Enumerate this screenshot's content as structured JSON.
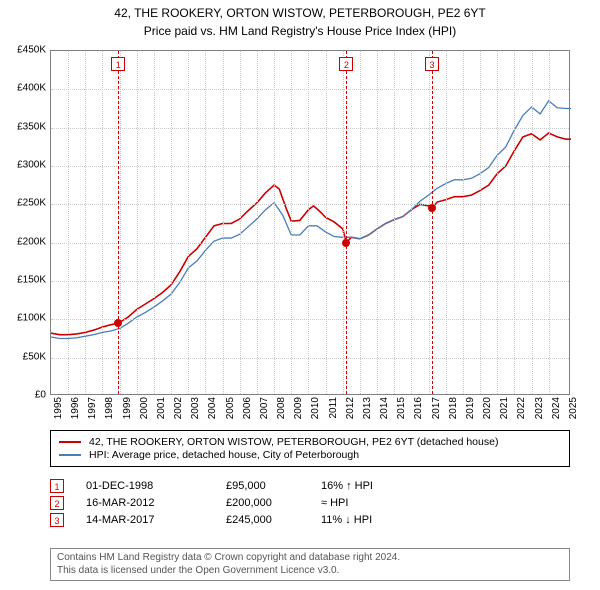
{
  "title": "42, THE ROOKERY, ORTON WISTOW, PETERBOROUGH, PE2 6YT",
  "subtitle": "Price paid vs. HM Land Registry's House Price Index (HPI)",
  "chart": {
    "type": "line",
    "background_color": "#ffffff",
    "grid_color": "#c8c8c8",
    "border_color": "#808080",
    "x_years": [
      1995,
      1996,
      1997,
      1998,
      1999,
      2000,
      2001,
      2002,
      2003,
      2004,
      2005,
      2006,
      2007,
      2008,
      2009,
      2010,
      2011,
      2012,
      2013,
      2014,
      2015,
      2016,
      2017,
      2018,
      2019,
      2020,
      2021,
      2022,
      2023,
      2024,
      2025
    ],
    "xlim": [
      1995,
      2025.3
    ],
    "ylim": [
      0,
      450000
    ],
    "ytick_step": 50000,
    "yticks": [
      "£0",
      "£50K",
      "£100K",
      "£150K",
      "£200K",
      "£250K",
      "£300K",
      "£350K",
      "£400K",
      "£450K"
    ],
    "series": [
      {
        "name": "property",
        "label": "42, THE ROOKERY, ORTON WISTOW, PETERBOROUGH, PE2 6YT (detached house)",
        "color": "#cc0000",
        "line_width": 1.6,
        "data": [
          [
            1995.0,
            82000
          ],
          [
            1995.5,
            80000
          ],
          [
            1996.0,
            80000
          ],
          [
            1996.5,
            81000
          ],
          [
            1997.0,
            83000
          ],
          [
            1997.5,
            86000
          ],
          [
            1998.0,
            90000
          ],
          [
            1998.5,
            93000
          ],
          [
            1998.92,
            95000
          ],
          [
            1999.5,
            103000
          ],
          [
            2000.0,
            113000
          ],
          [
            2000.5,
            120000
          ],
          [
            2001.0,
            127000
          ],
          [
            2001.5,
            135000
          ],
          [
            2002.0,
            145000
          ],
          [
            2002.5,
            162000
          ],
          [
            2003.0,
            182000
          ],
          [
            2003.5,
            192000
          ],
          [
            2004.0,
            207000
          ],
          [
            2004.5,
            222000
          ],
          [
            2005.0,
            225000
          ],
          [
            2005.5,
            225000
          ],
          [
            2006.0,
            231000
          ],
          [
            2006.5,
            242000
          ],
          [
            2007.0,
            252000
          ],
          [
            2007.5,
            265000
          ],
          [
            2008.0,
            275000
          ],
          [
            2008.3,
            270000
          ],
          [
            2008.7,
            245000
          ],
          [
            2009.0,
            228000
          ],
          [
            2009.5,
            229000
          ],
          [
            2010.0,
            243000
          ],
          [
            2010.3,
            248000
          ],
          [
            2010.7,
            240000
          ],
          [
            2011.0,
            233000
          ],
          [
            2011.5,
            227000
          ],
          [
            2012.0,
            218000
          ],
          [
            2012.21,
            200000
          ],
          [
            2012.5,
            207000
          ],
          [
            2013.0,
            205000
          ],
          [
            2013.5,
            210000
          ],
          [
            2014.0,
            218000
          ],
          [
            2014.5,
            225000
          ],
          [
            2015.0,
            230000
          ],
          [
            2015.5,
            234000
          ],
          [
            2016.0,
            243000
          ],
          [
            2016.5,
            250000
          ],
          [
            2017.0,
            248000
          ],
          [
            2017.2,
            245000
          ],
          [
            2017.5,
            253000
          ],
          [
            2018.0,
            256000
          ],
          [
            2018.5,
            260000
          ],
          [
            2019.0,
            260000
          ],
          [
            2019.5,
            262000
          ],
          [
            2020.0,
            268000
          ],
          [
            2020.5,
            275000
          ],
          [
            2021.0,
            290000
          ],
          [
            2021.5,
            300000
          ],
          [
            2022.0,
            320000
          ],
          [
            2022.5,
            338000
          ],
          [
            2023.0,
            342000
          ],
          [
            2023.5,
            334000
          ],
          [
            2024.0,
            343000
          ],
          [
            2024.5,
            338000
          ],
          [
            2025.0,
            335000
          ],
          [
            2025.3,
            335000
          ]
        ]
      },
      {
        "name": "hpi",
        "label": "HPI: Average price, detached house, City of Peterborough",
        "color": "#4a7ebb",
        "line_width": 1.3,
        "data": [
          [
            1995.0,
            77000
          ],
          [
            1995.5,
            75000
          ],
          [
            1996.0,
            75000
          ],
          [
            1996.5,
            76000
          ],
          [
            1997.0,
            78000
          ],
          [
            1997.5,
            80000
          ],
          [
            1998.0,
            83000
          ],
          [
            1998.5,
            85000
          ],
          [
            1999.0,
            88000
          ],
          [
            1999.5,
            95000
          ],
          [
            2000.0,
            103000
          ],
          [
            2000.5,
            109000
          ],
          [
            2001.0,
            116000
          ],
          [
            2001.5,
            124000
          ],
          [
            2002.0,
            133000
          ],
          [
            2002.5,
            148000
          ],
          [
            2003.0,
            167000
          ],
          [
            2003.5,
            176000
          ],
          [
            2004.0,
            190000
          ],
          [
            2004.5,
            202000
          ],
          [
            2005.0,
            206000
          ],
          [
            2005.5,
            206000
          ],
          [
            2006.0,
            211000
          ],
          [
            2006.5,
            221000
          ],
          [
            2007.0,
            231000
          ],
          [
            2007.5,
            243000
          ],
          [
            2008.0,
            252000
          ],
          [
            2008.5,
            236000
          ],
          [
            2009.0,
            210000
          ],
          [
            2009.5,
            210000
          ],
          [
            2010.0,
            222000
          ],
          [
            2010.5,
            222000
          ],
          [
            2011.0,
            214000
          ],
          [
            2011.5,
            208000
          ],
          [
            2012.0,
            207000
          ],
          [
            2012.5,
            207000
          ],
          [
            2013.0,
            205000
          ],
          [
            2013.5,
            210000
          ],
          [
            2014.0,
            218000
          ],
          [
            2014.5,
            225000
          ],
          [
            2015.0,
            230000
          ],
          [
            2015.5,
            234000
          ],
          [
            2016.0,
            243000
          ],
          [
            2016.5,
            254000
          ],
          [
            2017.0,
            262000
          ],
          [
            2017.5,
            271000
          ],
          [
            2018.0,
            277000
          ],
          [
            2018.5,
            282000
          ],
          [
            2019.0,
            282000
          ],
          [
            2019.5,
            284000
          ],
          [
            2020.0,
            290000
          ],
          [
            2020.5,
            298000
          ],
          [
            2021.0,
            314000
          ],
          [
            2021.5,
            325000
          ],
          [
            2022.0,
            347000
          ],
          [
            2022.5,
            366000
          ],
          [
            2023.0,
            377000
          ],
          [
            2023.5,
            368000
          ],
          [
            2024.0,
            385000
          ],
          [
            2024.5,
            376000
          ],
          [
            2025.0,
            375000
          ],
          [
            2025.3,
            375000
          ]
        ]
      }
    ],
    "markers": [
      {
        "n": "1",
        "x": 1998.92,
        "y": 95000
      },
      {
        "n": "2",
        "x": 2012.21,
        "y": 200000
      },
      {
        "n": "3",
        "x": 2017.2,
        "y": 245000
      }
    ]
  },
  "legend": {
    "border_color": "#000000"
  },
  "sales": [
    {
      "n": "1",
      "date": "01-DEC-1998",
      "price": "£95,000",
      "diff": "16% ↑ HPI"
    },
    {
      "n": "2",
      "date": "16-MAR-2012",
      "price": "£200,000",
      "diff": "≈ HPI"
    },
    {
      "n": "3",
      "date": "14-MAR-2017",
      "price": "£245,000",
      "diff": "11% ↓ HPI"
    }
  ],
  "footer": {
    "line1": "Contains HM Land Registry data © Crown copyright and database right 2024.",
    "line2": "This data is licensed under the Open Government Licence v3.0."
  }
}
